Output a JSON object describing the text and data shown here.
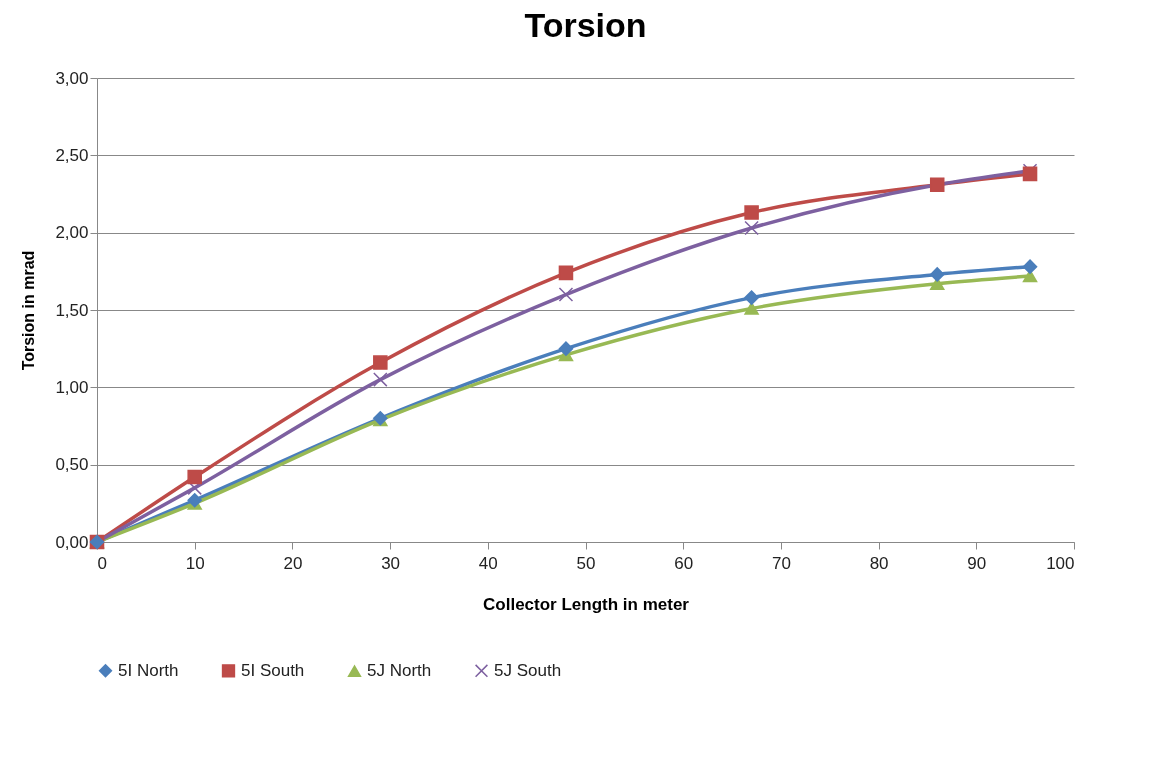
{
  "chart_data": {
    "type": "line",
    "title": "Torsion",
    "xlabel": "Collector Length in meter",
    "ylabel": "Torsion in mrad",
    "x": [
      0,
      10,
      29,
      48,
      67,
      86,
      95.5
    ],
    "series": [
      {
        "name": "5I North",
        "color": "#4a7ebb",
        "marker": "diamond",
        "values": [
          0,
          0.27,
          0.8,
          1.25,
          1.58,
          1.73,
          1.78
        ]
      },
      {
        "name": "5I South",
        "color": "#be4b48",
        "marker": "square",
        "values": [
          0,
          0.42,
          1.16,
          1.74,
          2.13,
          2.31,
          2.38
        ]
      },
      {
        "name": "5J North",
        "color": "#98b954",
        "marker": "triangle",
        "values": [
          0,
          0.25,
          0.79,
          1.21,
          1.51,
          1.67,
          1.72
        ]
      },
      {
        "name": "5J South",
        "color": "#7d60a0",
        "marker": "cross",
        "values": [
          0,
          0.35,
          1.05,
          1.6,
          2.03,
          2.31,
          2.4
        ]
      }
    ],
    "xlim": [
      0,
      100
    ],
    "xticks": [
      0,
      10,
      20,
      30,
      40,
      50,
      60,
      70,
      80,
      90,
      100
    ],
    "ylim": [
      0,
      3
    ],
    "yticks": [
      {
        "value": 0,
        "label": "0,00"
      },
      {
        "value": 0.5,
        "label": "0,50"
      },
      {
        "value": 1,
        "label": "1,00"
      },
      {
        "value": 1.5,
        "label": "1,50"
      },
      {
        "value": 2,
        "label": "2,00"
      },
      {
        "value": 2.5,
        "label": "2,50"
      },
      {
        "value": 3,
        "label": "3,00"
      }
    ],
    "grid": "y",
    "legend": "bottom",
    "line_style": "solid"
  }
}
